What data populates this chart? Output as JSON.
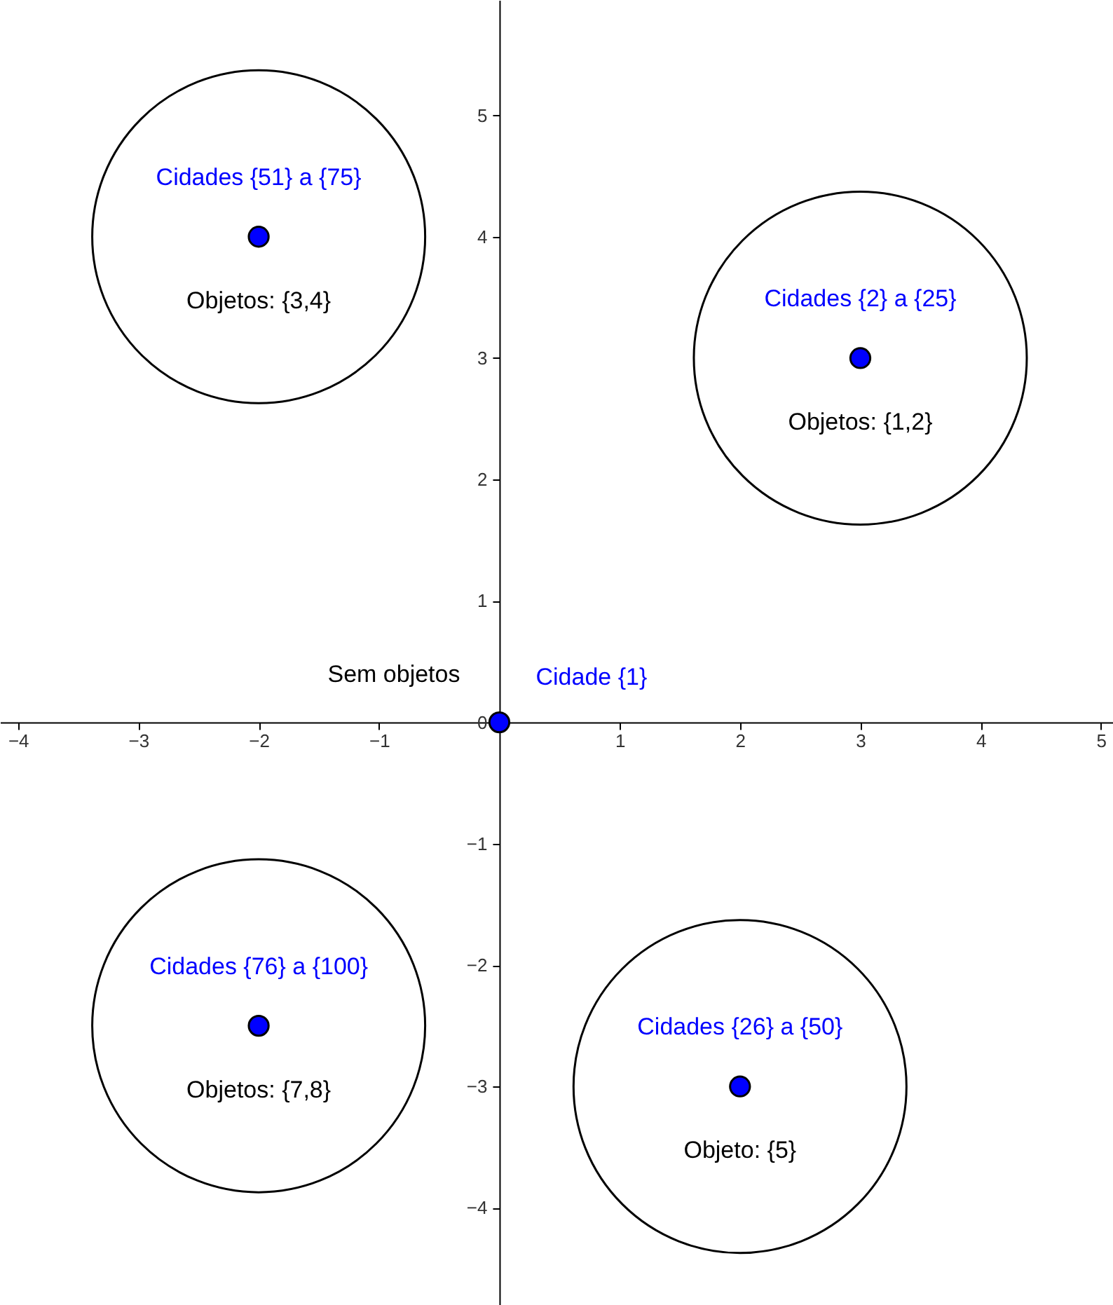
{
  "chart_data": {
    "type": "scatter",
    "xlim": [
      -4.15,
      5.1
    ],
    "ylim": [
      -4.8,
      5.95
    ],
    "xticks": [
      -4,
      -3,
      -2,
      -1,
      {
        "value": 0,
        "label": null
      },
      1,
      2,
      3,
      4,
      5
    ],
    "yticks": [
      -4,
      -3,
      -2,
      -1,
      0,
      1,
      2,
      3,
      4,
      5
    ],
    "grid": false,
    "marker": "circle",
    "series": [
      {
        "name": "Cidade {1}",
        "type": "scatter",
        "color": "#0000ff",
        "x": [
          0
        ],
        "values": [
          0
        ]
      },
      {
        "name": "Cidades {51} a {75}",
        "color": "#0000ff",
        "x": [
          -2
        ],
        "values": [
          4
        ]
      },
      {
        "name": "Cidades {2} a {25}",
        "color": "#0000ff",
        "x": [
          3
        ],
        "values": [
          3
        ]
      },
      {
        "name": "Cidades {76} a {100}",
        "color": "#0000ff",
        "x": [
          -2
        ],
        "values": [
          -2.5
        ]
      },
      {
        "name": "Cidades {26} a {50}",
        "color": "#0000ff",
        "x": [
          2
        ],
        "values": [
          -3
        ]
      }
    ],
    "annotations": [
      {
        "text": "Sem objetos",
        "x": 0,
        "y": 0
      },
      {
        "text": "Objetos: {3,4}",
        "x": -2,
        "y": 4
      },
      {
        "text": "Objetos: {1,2}",
        "x": 3,
        "y": 3
      },
      {
        "text": "Objetos: {7,8}",
        "x": -2,
        "y": -2.5
      },
      {
        "text": "Objeto: {5}",
        "x": 2,
        "y": -3
      }
    ]
  }
}
